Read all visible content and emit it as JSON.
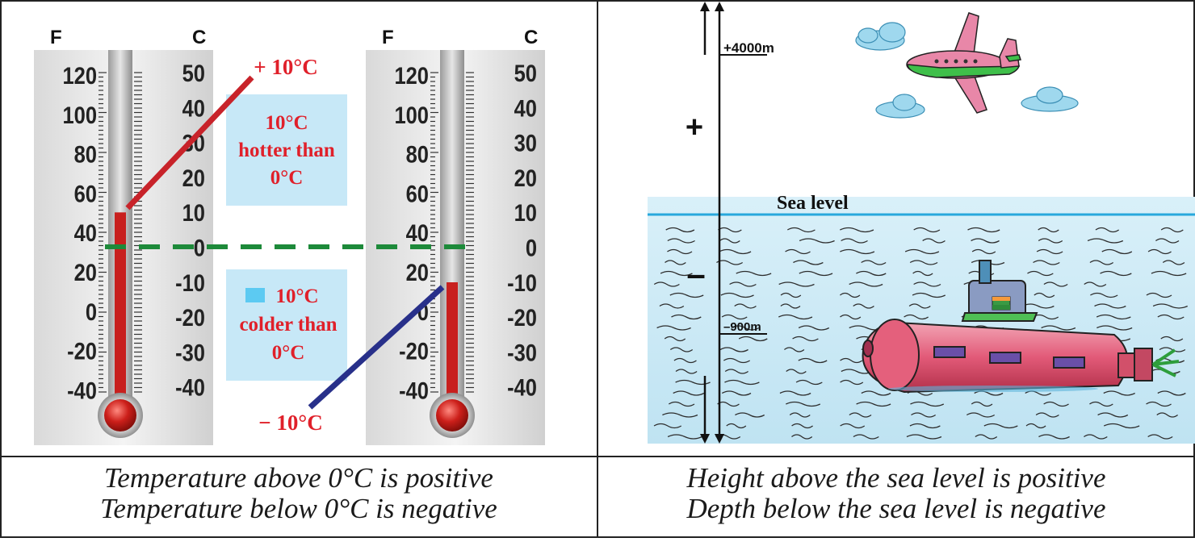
{
  "left_panel": {
    "thermometers": [
      {
        "f_header": "F",
        "c_header": "C",
        "f_ticks": [
          "120",
          "100",
          "80",
          "60",
          "40",
          "20",
          "0",
          "-20",
          "-40"
        ],
        "c_ticks": [
          "50",
          "40",
          "30",
          "20",
          "10",
          "0",
          "-10",
          "-20",
          "-30",
          "-40"
        ],
        "reading_c": 10
      },
      {
        "f_header": "F",
        "c_header": "C",
        "f_ticks": [
          "120",
          "100",
          "80",
          "60",
          "40",
          "20",
          "0",
          "-20",
          "-40"
        ],
        "c_ticks": [
          "50",
          "40",
          "30",
          "20",
          "10",
          "0",
          "-10",
          "-20",
          "-30",
          "-40"
        ],
        "reading_c": -10
      }
    ],
    "plus_label": "+ 10°C",
    "minus_label": "− 10°C",
    "hotter_box": [
      "10°C",
      "hotter than",
      "0°C"
    ],
    "colder_box": [
      "10°C",
      "colder than",
      "0°C"
    ],
    "caption_line1": "Temperature above 0°C is positive",
    "caption_line2": "Temperature below 0°C is negative",
    "colors": {
      "mercury": "#c8201e",
      "hot_line": "#c8232a",
      "cold_line": "#28308a",
      "zero_line": "#1d8a3a",
      "label_red": "#e0202a",
      "box": "#c7e8f7"
    }
  },
  "right_panel": {
    "height_label": "+4000m",
    "depth_label": "–900m",
    "sea_level_label": "Sea level",
    "plus_sign": "+",
    "minus_sign": "–",
    "caption_line1": "Height above the sea level is positive",
    "caption_line2": "Depth below the sea level is negative",
    "icons": [
      "airplane-icon",
      "cloud-icon",
      "submarine-icon",
      "water-waves"
    ],
    "colors": {
      "sea_line": "#28a8dc",
      "water": "#cfeaf5",
      "submarine": "#e0607a",
      "plane": "#e887a8",
      "plane_green": "#3fbf4a"
    }
  }
}
